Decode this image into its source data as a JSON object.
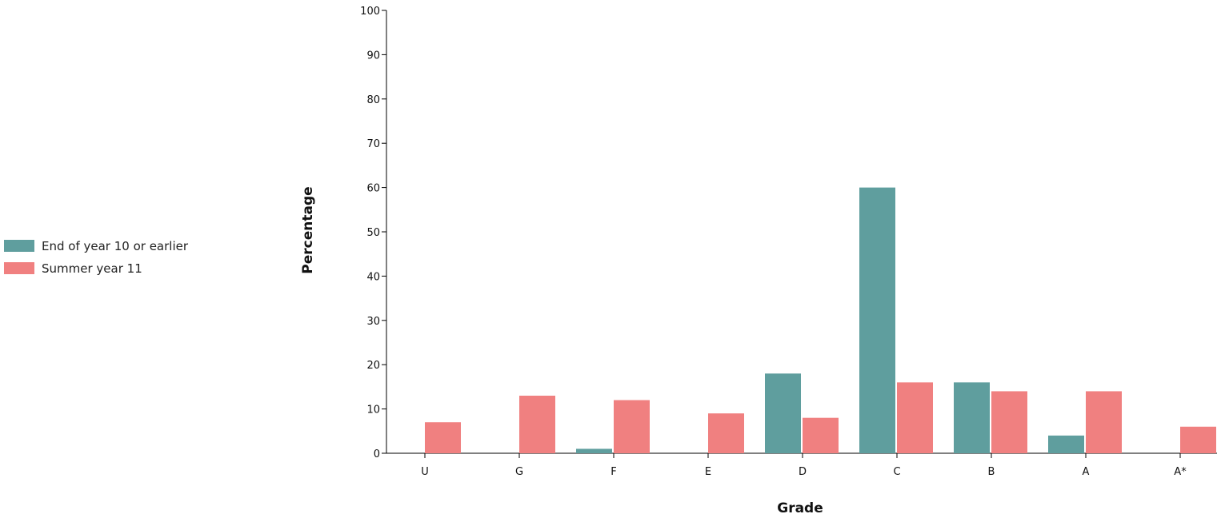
{
  "chart_data": {
    "type": "bar",
    "title": "",
    "xlabel": "Grade",
    "ylabel": "Percentage",
    "ylim": [
      0,
      100
    ],
    "yticks": [
      0,
      10,
      20,
      30,
      40,
      50,
      60,
      70,
      80,
      90,
      100
    ],
    "categories": [
      "U",
      "G",
      "F",
      "E",
      "D",
      "C",
      "B",
      "A",
      "A*"
    ],
    "series": [
      {
        "name": "End of year 10 or earlier",
        "color": "#5f9e9e",
        "values": [
          0,
          0,
          1,
          0,
          18,
          60,
          16,
          4,
          0
        ]
      },
      {
        "name": "Summer year 11",
        "color": "#f08080",
        "values": [
          7,
          13,
          12,
          9,
          8,
          16,
          14,
          14,
          6
        ]
      }
    ],
    "legend_position": "left",
    "grid": false
  }
}
